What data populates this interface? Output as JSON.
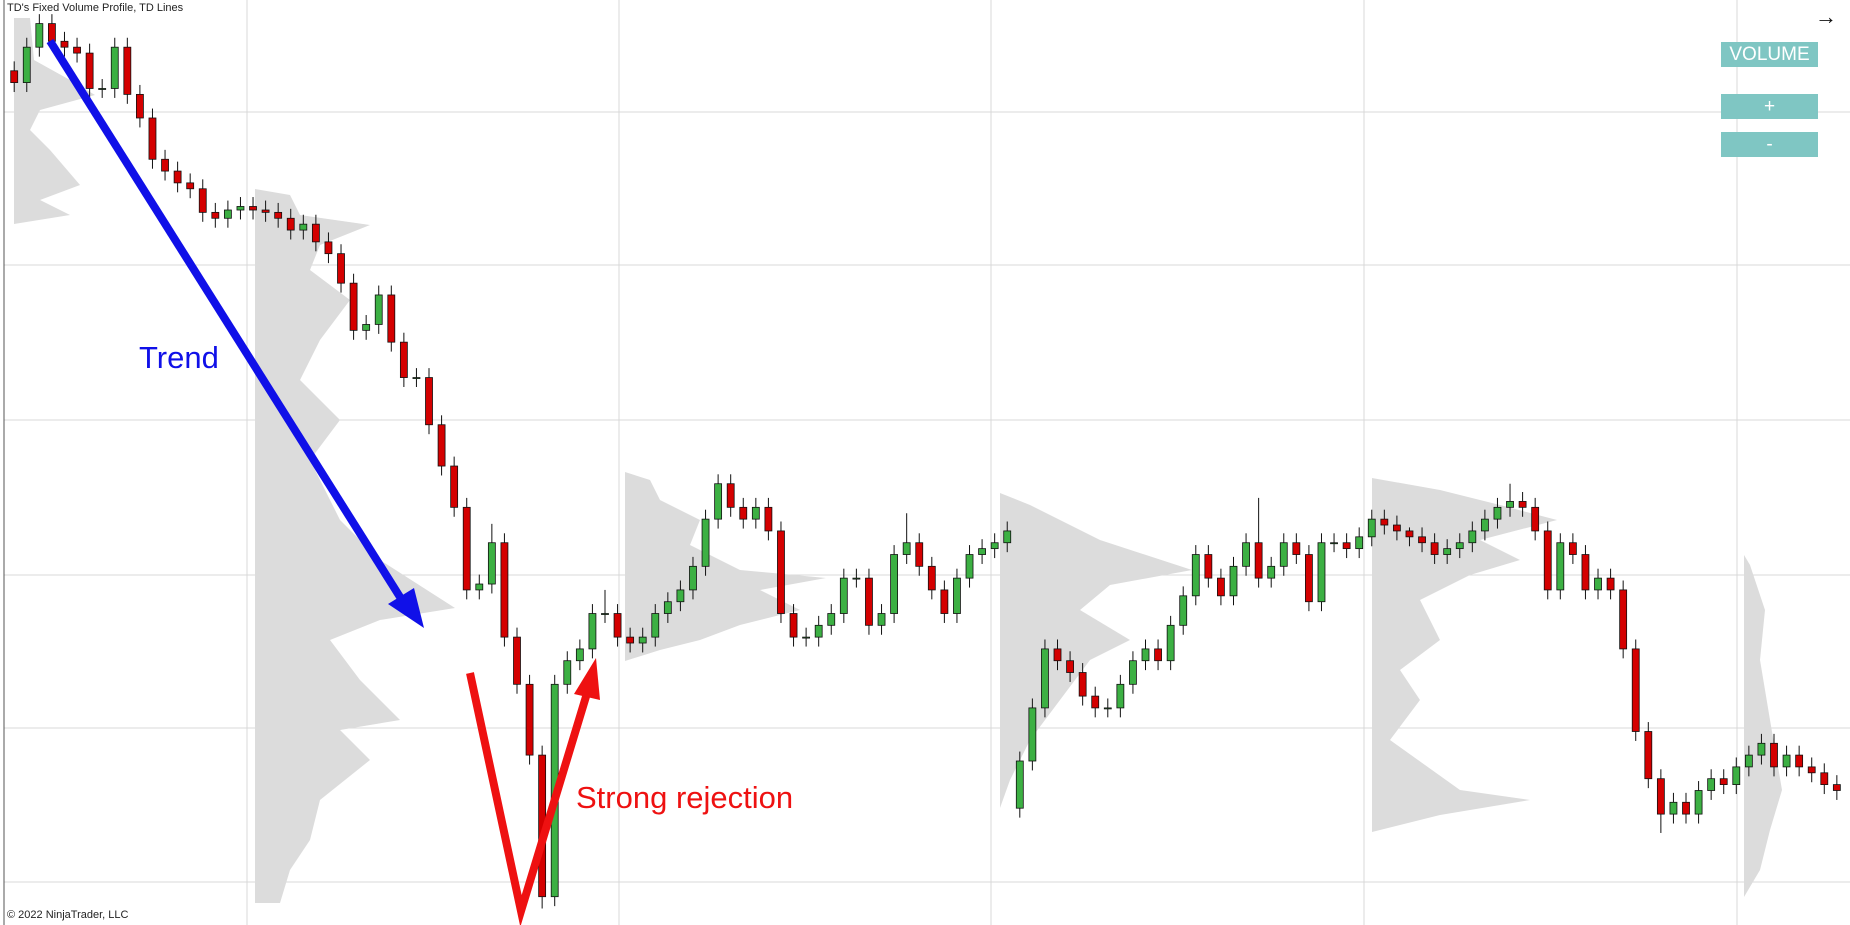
{
  "header": {
    "title": "TD's Fixed Volume Profile, TD Lines",
    "copyright": "© 2022 NinjaTrader, LLC",
    "nav_icon": "→"
  },
  "buttons": [
    "VOLUME",
    "+",
    "-"
  ],
  "chart_data": {
    "type": "candlestick",
    "annotations": [
      {
        "text": "Trend",
        "color": "#1010e8"
      },
      {
        "text": "Strong rejection",
        "color": "#ee1111"
      }
    ],
    "up_color": "#3cb043",
    "down_color": "#d40000",
    "ylim": [
      0,
      784
    ],
    "open": [
      724,
      714,
      744,
      764,
      749,
      744,
      739,
      709,
      709,
      744,
      704,
      684,
      649,
      639,
      629,
      624,
      604,
      599,
      606,
      609,
      606,
      604,
      599,
      589,
      594,
      579,
      569,
      544,
      504,
      509,
      534,
      494,
      464,
      464,
      424,
      389,
      354,
      284,
      289,
      324,
      244,
      204,
      144,
      24,
      204,
      224,
      234,
      264,
      264,
      244,
      239,
      244,
      264,
      274,
      284,
      304,
      344,
      374,
      354,
      344,
      354,
      334,
      264,
      244,
      244,
      254,
      264,
      294,
      294,
      254,
      264,
      314,
      324,
      304,
      284,
      264,
      294,
      314,
      319,
      324,
      99,
      139,
      184,
      234,
      224,
      214,
      194,
      184,
      184,
      204,
      224,
      234,
      224,
      254,
      279,
      314,
      294,
      279,
      304,
      324,
      294,
      304,
      324,
      314,
      274,
      324,
      324,
      319,
      329,
      344,
      339,
      334,
      329,
      324,
      314,
      319,
      324,
      334,
      344,
      354,
      359,
      354,
      334,
      284,
      324,
      314,
      284,
      294,
      284,
      234,
      164,
      124,
      94,
      104,
      94,
      114,
      124,
      119,
      134,
      144,
      154,
      134,
      144,
      134,
      129,
      119
    ],
    "high": [
      732,
      752,
      772,
      772,
      757,
      752,
      747,
      717,
      752,
      752,
      712,
      692,
      657,
      647,
      637,
      632,
      612,
      614,
      617,
      617,
      614,
      612,
      607,
      602,
      602,
      587,
      577,
      552,
      517,
      542,
      542,
      502,
      472,
      472,
      432,
      397,
      362,
      297,
      340,
      332,
      252,
      212,
      152,
      212,
      232,
      242,
      272,
      284,
      272,
      252,
      252,
      272,
      282,
      292,
      312,
      352,
      382,
      382,
      362,
      362,
      362,
      342,
      272,
      252,
      262,
      272,
      302,
      302,
      302,
      272,
      322,
      349,
      332,
      312,
      292,
      302,
      322,
      327,
      332,
      342,
      147,
      192,
      242,
      242,
      232,
      222,
      202,
      192,
      212,
      232,
      242,
      242,
      262,
      287,
      322,
      322,
      302,
      312,
      332,
      362,
      312,
      332,
      332,
      322,
      332,
      332,
      332,
      337,
      352,
      352,
      347,
      337,
      337,
      332,
      327,
      332,
      342,
      352,
      362,
      374,
      367,
      362,
      342,
      332,
      332,
      322,
      302,
      302,
      292,
      242,
      172,
      132,
      112,
      112,
      122,
      132,
      132,
      142,
      152,
      162,
      162,
      152,
      152,
      142,
      137,
      127
    ],
    "low": [
      706,
      706,
      736,
      741,
      736,
      731,
      701,
      701,
      701,
      696,
      676,
      641,
      631,
      621,
      616,
      596,
      591,
      591,
      598,
      598,
      596,
      591,
      581,
      581,
      571,
      561,
      536,
      496,
      496,
      501,
      486,
      456,
      456,
      416,
      381,
      346,
      276,
      276,
      281,
      236,
      196,
      136,
      14,
      16,
      196,
      216,
      226,
      256,
      236,
      231,
      231,
      236,
      256,
      266,
      276,
      296,
      336,
      346,
      336,
      336,
      326,
      256,
      236,
      236,
      236,
      246,
      256,
      286,
      246,
      246,
      256,
      306,
      296,
      276,
      256,
      256,
      286,
      306,
      311,
      316,
      91,
      131,
      176,
      216,
      206,
      186,
      176,
      176,
      176,
      196,
      216,
      216,
      216,
      246,
      271,
      286,
      271,
      271,
      296,
      286,
      286,
      296,
      306,
      266,
      266,
      316,
      311,
      311,
      321,
      331,
      326,
      321,
      316,
      306,
      306,
      311,
      316,
      326,
      336,
      346,
      346,
      326,
      276,
      276,
      306,
      276,
      276,
      276,
      226,
      156,
      116,
      78,
      86,
      86,
      86,
      106,
      111,
      111,
      126,
      136,
      126,
      126,
      126,
      121,
      111,
      106
    ],
    "close": [
      714,
      744,
      764,
      749,
      744,
      739,
      709,
      709,
      744,
      704,
      684,
      649,
      639,
      629,
      624,
      604,
      599,
      606,
      609,
      606,
      604,
      599,
      589,
      594,
      579,
      569,
      544,
      504,
      509,
      534,
      494,
      464,
      464,
      424,
      389,
      354,
      284,
      289,
      324,
      244,
      204,
      144,
      24,
      204,
      224,
      234,
      264,
      264,
      244,
      239,
      244,
      264,
      274,
      284,
      304,
      344,
      374,
      354,
      344,
      354,
      334,
      264,
      244,
      244,
      254,
      264,
      294,
      294,
      254,
      264,
      314,
      324,
      304,
      284,
      264,
      294,
      314,
      319,
      324,
      334,
      139,
      184,
      234,
      224,
      214,
      194,
      184,
      184,
      204,
      224,
      234,
      224,
      254,
      279,
      314,
      294,
      279,
      304,
      324,
      294,
      304,
      324,
      314,
      274,
      324,
      324,
      319,
      329,
      344,
      339,
      334,
      329,
      324,
      314,
      319,
      324,
      334,
      344,
      354,
      359,
      354,
      334,
      284,
      324,
      314,
      284,
      294,
      284,
      234,
      164,
      124,
      94,
      104,
      94,
      114,
      124,
      119,
      134,
      144,
      154,
      134,
      144,
      134,
      129,
      119,
      114
    ]
  }
}
